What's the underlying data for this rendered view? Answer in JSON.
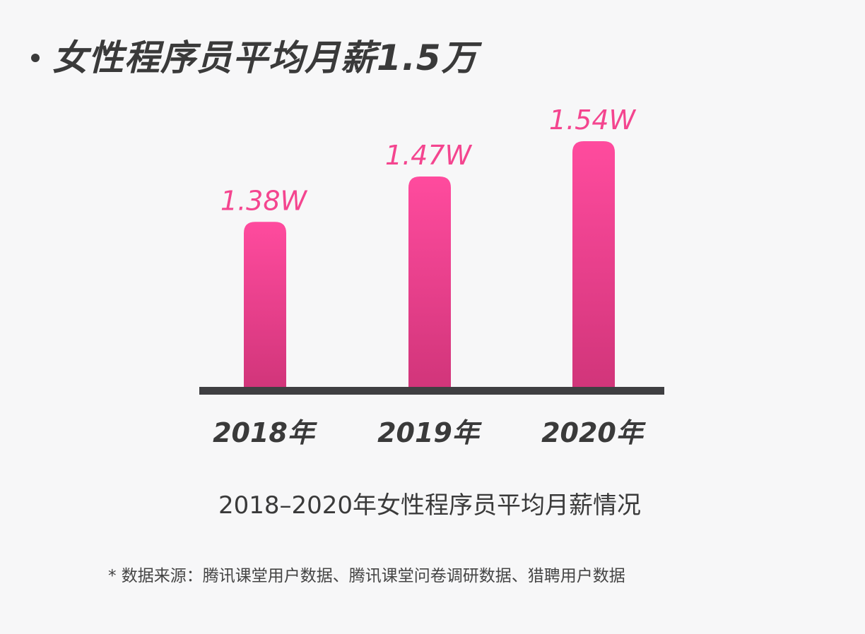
{
  "title": "女性程序员平均月薪1.5万",
  "chart_data": {
    "type": "bar",
    "categories": [
      "2018年",
      "2019年",
      "2020年"
    ],
    "values": [
      1.38,
      1.47,
      1.54
    ],
    "data_labels": [
      "1.38W",
      "1.47W",
      "1.54W"
    ],
    "unit": "W",
    "title": "2018–2020年女性程序员平均月薪情况",
    "xlabel": "",
    "ylabel": "",
    "ylim": [
      1.05,
      1.6
    ],
    "grid": false,
    "bar_color_top": "#ff4b9e",
    "bar_color_bottom": "#d1357a",
    "label_color": "#f4458f",
    "axis_color": "#3f3f42"
  },
  "footnote": "* 数据来源：腾讯课堂用户数据、腾讯课堂问卷调研数据、猎聘用户数据"
}
